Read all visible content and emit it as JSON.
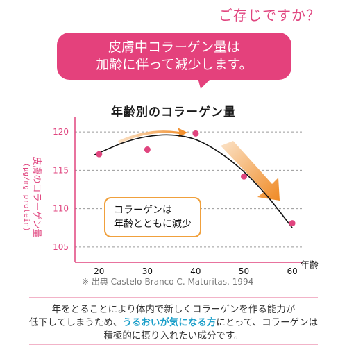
{
  "header": {
    "question": "ご存じですか？",
    "bubble_line1": "皮膚中コラーゲン量は",
    "bubble_line2": "加齢に伴って減少します。"
  },
  "chart_data": {
    "type": "scatter",
    "title": "年齢別のコラーゲン量",
    "xlabel": "年齢",
    "ylabel": "皮膚のコラーゲン量",
    "ylabel_unit": "(μg/mg protein)",
    "xlim": [
      15,
      62
    ],
    "ylim": [
      103,
      122
    ],
    "x_ticks": [
      20,
      30,
      40,
      50,
      60
    ],
    "y_ticks": [
      105,
      110,
      115,
      120
    ],
    "points": [
      {
        "x": 20,
        "y": 117.1
      },
      {
        "x": 30,
        "y": 117.7
      },
      {
        "x": 40,
        "y": 119.8
      },
      {
        "x": 50,
        "y": 114.2
      },
      {
        "x": 60,
        "y": 108.1
      }
    ],
    "trend_curve": [
      {
        "x": 19,
        "y": 117.0
      },
      {
        "x": 25,
        "y": 118.6
      },
      {
        "x": 30,
        "y": 119.4
      },
      {
        "x": 35,
        "y": 119.6
      },
      {
        "x": 40,
        "y": 119.0
      },
      {
        "x": 45,
        "y": 117.3
      },
      {
        "x": 50,
        "y": 114.8
      },
      {
        "x": 55,
        "y": 111.5
      },
      {
        "x": 60,
        "y": 107.5
      }
    ],
    "grid": "horizontal-dashed",
    "point_color": "#e0457f",
    "curve_color": "#111111",
    "arrow_color": "#f08a24",
    "annotation_line1": "コラーゲンは",
    "annotation_line2": "年齢とともに減少"
  },
  "source_note": "※ 出典 Castelo-Branco C. Maturitas, 1994",
  "description": {
    "line1": "年をとることにより体内で新しくコラーゲンを作る能力が",
    "line2_before": "低下してしまうため、",
    "line2_highlight": "うるおいが気になる方",
    "line2_after": "にとって、コラーゲンは",
    "line3": "積極的に摂り入れたい成分です。"
  }
}
